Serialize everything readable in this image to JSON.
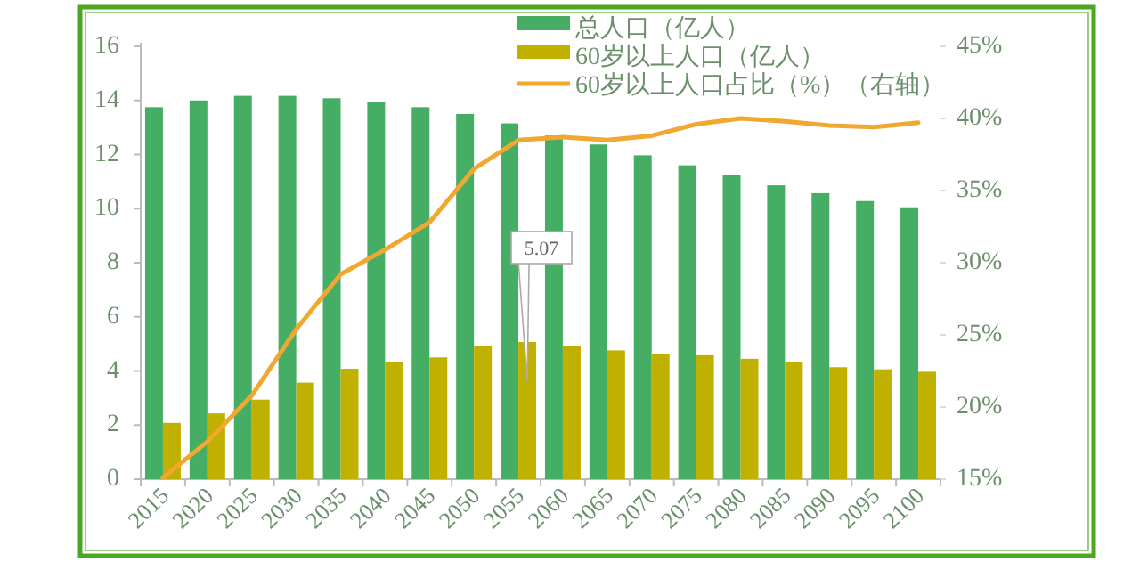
{
  "chart_data": {
    "type": "bar",
    "categories": [
      "2015",
      "2020",
      "2025",
      "2030",
      "2035",
      "2040",
      "2045",
      "2050",
      "2055",
      "2060",
      "2065",
      "2070",
      "2075",
      "2080",
      "2085",
      "2090",
      "2095",
      "2100"
    ],
    "series": [
      {
        "name": "总人口（亿人）",
        "color": "#46ad65",
        "values": [
          13.75,
          14.0,
          14.17,
          14.17,
          14.08,
          13.95,
          13.75,
          13.5,
          13.15,
          12.7,
          12.37,
          11.97,
          11.6,
          11.23,
          10.86,
          10.57,
          10.28,
          10.05
        ]
      },
      {
        "name": "60岁以上人口（亿人）",
        "color": "#c0b000",
        "values": [
          2.08,
          2.43,
          2.94,
          3.57,
          4.08,
          4.32,
          4.5,
          4.91,
          5.07,
          4.91,
          4.76,
          4.63,
          4.58,
          4.45,
          4.32,
          4.14,
          4.06,
          3.97
        ],
        "value_labels": [
          null,
          null,
          null,
          null,
          null,
          null,
          null,
          null,
          "5.07",
          null,
          null,
          null,
          null,
          null,
          null,
          null,
          null,
          null
        ]
      },
      {
        "name": "60岁以上人口占比（%）（右轴）",
        "color": "#f0a830",
        "type": "line",
        "axis": "y2",
        "values": [
          15.1,
          17.6,
          20.8,
          25.4,
          29.2,
          30.9,
          32.8,
          36.5,
          38.5,
          38.7,
          38.5,
          38.8,
          39.6,
          40.0,
          39.8,
          39.5,
          39.4,
          39.7
        ]
      }
    ],
    "ylim": [
      0,
      16
    ],
    "yticks": [
      0,
      2,
      4,
      6,
      8,
      10,
      12,
      14,
      16
    ],
    "y2lim": [
      15,
      45
    ],
    "y2ticks": [
      {
        "value": 15,
        "label": "15%"
      },
      {
        "value": 20,
        "label": "20%"
      },
      {
        "value": 25,
        "label": "25%"
      },
      {
        "value": 30,
        "label": "30%"
      },
      {
        "value": 35,
        "label": "35%"
      },
      {
        "value": 40,
        "label": "40%"
      },
      {
        "value": 45,
        "label": "45%"
      }
    ],
    "legend": "top right",
    "grid": false
  }
}
